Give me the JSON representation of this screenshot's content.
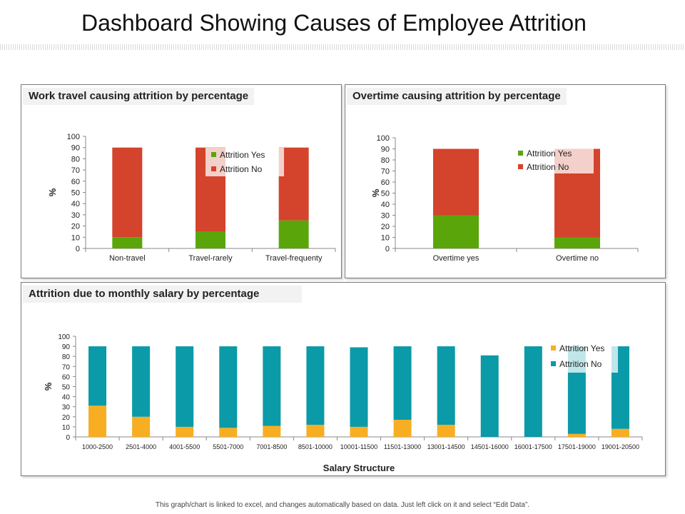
{
  "page": {
    "title": "Dashboard Showing Causes of Employee Attrition",
    "footer": "This graph/chart is linked to excel, and changes automatically  based on data. Just left click on it and select “Edit Data”."
  },
  "colors": {
    "green": "#5aa60a",
    "red": "#d4432c",
    "teal": "#0a9aa8",
    "orange": "#f7ae22",
    "axis": "#888888",
    "text": "#222222"
  },
  "chart_data": [
    {
      "id": "travel",
      "type": "bar",
      "stacked": true,
      "title": "Work travel causing attrition by percentage",
      "ylabel": "%",
      "xlabel": "",
      "ylim": [
        0,
        100
      ],
      "yticks": [
        0,
        10,
        20,
        30,
        40,
        50,
        60,
        70,
        80,
        90,
        100
      ],
      "legend": "top-right",
      "categories": [
        "Non-travel",
        "Travel-rarely",
        "Travel-frequenty"
      ],
      "series": [
        {
          "name": "Attrition Yes",
          "color": "#5aa60a",
          "values": [
            10,
            15,
            25
          ]
        },
        {
          "name": "Attrition No",
          "color": "#d4432c",
          "values": [
            80,
            75,
            65
          ]
        }
      ]
    },
    {
      "id": "overtime",
      "type": "bar",
      "stacked": true,
      "title": "Overtime causing attrition by percentage",
      "ylabel": "%",
      "xlabel": "",
      "ylim": [
        0,
        100
      ],
      "yticks": [
        0,
        10,
        20,
        30,
        40,
        50,
        60,
        70,
        80,
        90,
        100
      ],
      "legend": "top-right",
      "categories": [
        "Overtime yes",
        "Overtime no"
      ],
      "series": [
        {
          "name": "Attrition Yes",
          "color": "#5aa60a",
          "values": [
            30,
            10
          ]
        },
        {
          "name": "Attrition No",
          "color": "#d4432c",
          "values": [
            60,
            80
          ]
        }
      ]
    },
    {
      "id": "salary",
      "type": "bar",
      "stacked": true,
      "title": "Attrition  due to monthly salary by percentage",
      "ylabel": "%",
      "xlabel": "Salary Structure",
      "ylim": [
        0,
        100
      ],
      "yticks": [
        0,
        10,
        20,
        30,
        40,
        50,
        60,
        70,
        80,
        90,
        100
      ],
      "legend": "top-right",
      "categories": [
        "1000-2500",
        "2501-4000",
        "4001-5500",
        "5501-7000",
        "7001-8500",
        "8501-10000",
        "10001-11500",
        "11501-13000",
        "13001-14500",
        "14501-16000",
        "16001-17500",
        "17501-19000",
        "19001-20500"
      ],
      "series": [
        {
          "name": "Attrition Yes",
          "color": "#f7ae22",
          "values": [
            31,
            20,
            10,
            9,
            11,
            12,
            10,
            17,
            12,
            0,
            0,
            3,
            8
          ]
        },
        {
          "name": "Attrition No",
          "color": "#0a9aa8",
          "values": [
            59,
            70,
            80,
            81,
            79,
            78,
            79,
            73,
            78,
            81,
            90,
            87,
            82
          ]
        }
      ]
    }
  ]
}
